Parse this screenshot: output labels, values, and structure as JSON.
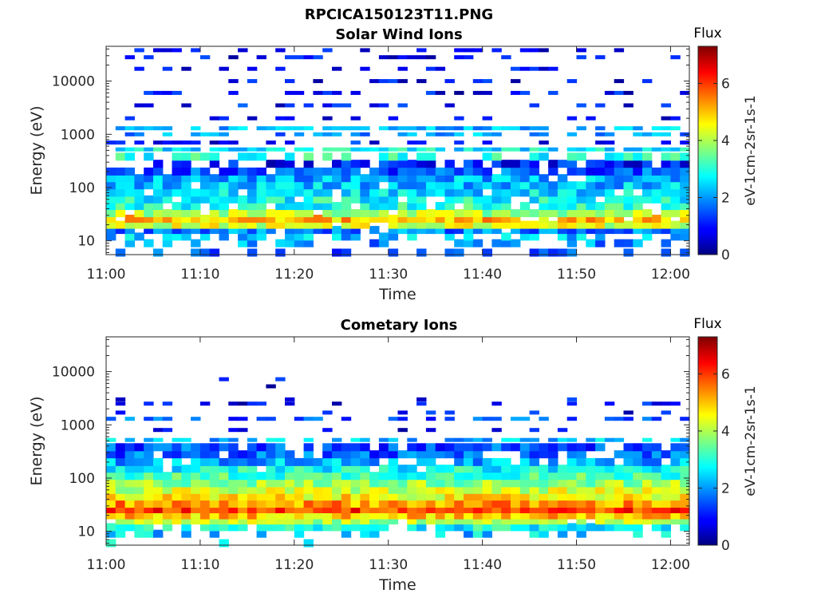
{
  "figure": {
    "title": "RPCICA150123T11.PNG"
  },
  "chart_data": [
    {
      "type": "heatmap",
      "title": "Solar Wind Ions",
      "xlabel": "Time",
      "ylabel": "Energy (eV)",
      "x_ticks": [
        "11:00",
        "11:10",
        "11:20",
        "11:30",
        "11:40",
        "11:50",
        "12:00"
      ],
      "x_range": [
        "11:00",
        "12:02"
      ],
      "y_scale": "log",
      "y_ticks": [
        "10",
        "100",
        "1000",
        "10000"
      ],
      "y_range": [
        5.5,
        45000
      ],
      "colorbar": {
        "title": "Flux",
        "label": "eV-1cm-2sr-1s-1",
        "range": [
          0,
          7.3
        ],
        "ticks": [
          "0",
          "2",
          "4",
          "6"
        ],
        "colormap": "jet"
      },
      "bands": [
        {
          "energy": 6,
          "flux": 1.5,
          "coverage": 0.35
        },
        {
          "energy": 9,
          "flux": 2.0,
          "coverage": 0.45
        },
        {
          "energy": 12,
          "flux": 2.3,
          "coverage": 0.55
        },
        {
          "energy": 16,
          "flux": 1.8,
          "coverage": 0.9
        },
        {
          "energy": 20,
          "flux": 4.3,
          "coverage": 0.95
        },
        {
          "energy": 26,
          "flux": 5.0,
          "coverage": 0.95
        },
        {
          "energy": 33,
          "flux": 4.0,
          "coverage": 0.9
        },
        {
          "energy": 45,
          "flux": 3.0,
          "coverage": 0.8
        },
        {
          "energy": 60,
          "flux": 2.8,
          "coverage": 0.85
        },
        {
          "energy": 80,
          "flux": 2.5,
          "coverage": 0.9
        },
        {
          "energy": 110,
          "flux": 2.3,
          "coverage": 0.95
        },
        {
          "energy": 150,
          "flux": 2.2,
          "coverage": 0.95
        },
        {
          "energy": 200,
          "flux": 1.5,
          "coverage": 0.85
        },
        {
          "energy": 280,
          "flux": 1.0,
          "coverage": 0.55
        },
        {
          "energy": 380,
          "flux": 3.0,
          "coverage": 0.65
        },
        {
          "energy": 520,
          "flux": 2.7,
          "coverage": 0.9
        },
        {
          "energy": 700,
          "flux": 1.0,
          "coverage": 0.5
        },
        {
          "energy": 1000,
          "flux": 2.0,
          "coverage": 0.45
        },
        {
          "energy": 1300,
          "flux": 2.2,
          "coverage": 0.7
        },
        {
          "energy": 2000,
          "flux": 1.0,
          "coverage": 0.3
        },
        {
          "energy": 3500,
          "flux": 1.0,
          "coverage": 0.3
        },
        {
          "energy": 6000,
          "flux": 0.8,
          "coverage": 0.3
        },
        {
          "energy": 10000,
          "flux": 0.8,
          "coverage": 0.28
        },
        {
          "energy": 17000,
          "flux": 0.8,
          "coverage": 0.3
        },
        {
          "energy": 28000,
          "flux": 0.8,
          "coverage": 0.35
        },
        {
          "energy": 38000,
          "flux": 0.8,
          "coverage": 0.35
        }
      ]
    },
    {
      "type": "heatmap",
      "title": "Cometary Ions",
      "xlabel": "Time",
      "ylabel": "Energy (eV)",
      "x_ticks": [
        "11:00",
        "11:10",
        "11:20",
        "11:30",
        "11:40",
        "11:50",
        "12:00"
      ],
      "x_range": [
        "11:00",
        "12:02"
      ],
      "y_scale": "log",
      "y_ticks": [
        "10",
        "100",
        "1000",
        "10000"
      ],
      "y_range": [
        5.5,
        45000
      ],
      "colorbar": {
        "title": "Flux",
        "label": "eV-1cm-2sr-1s-1",
        "range": [
          0,
          7.3
        ],
        "ticks": [
          "0",
          "2",
          "4",
          "6"
        ],
        "colormap": "jet"
      },
      "bands": [
        {
          "energy": 6,
          "flux": 2.5,
          "coverage": 0.05
        },
        {
          "energy": 9,
          "flux": 2.4,
          "coverage": 0.5
        },
        {
          "energy": 12,
          "flux": 2.8,
          "coverage": 0.75
        },
        {
          "energy": 16,
          "flux": 4.0,
          "coverage": 0.95
        },
        {
          "energy": 20,
          "flux": 5.0,
          "coverage": 1.0
        },
        {
          "energy": 26,
          "flux": 6.0,
          "coverage": 1.0
        },
        {
          "energy": 33,
          "flux": 5.3,
          "coverage": 1.0
        },
        {
          "energy": 45,
          "flux": 4.6,
          "coverage": 1.0
        },
        {
          "energy": 60,
          "flux": 4.2,
          "coverage": 1.0
        },
        {
          "energy": 80,
          "flux": 3.8,
          "coverage": 1.0
        },
        {
          "energy": 110,
          "flux": 3.2,
          "coverage": 1.0
        },
        {
          "energy": 150,
          "flux": 2.8,
          "coverage": 0.95
        },
        {
          "energy": 200,
          "flux": 2.2,
          "coverage": 0.85
        },
        {
          "energy": 280,
          "flux": 1.6,
          "coverage": 0.8
        },
        {
          "energy": 380,
          "flux": 1.5,
          "coverage": 0.75
        },
        {
          "energy": 520,
          "flux": 2.3,
          "coverage": 0.6
        },
        {
          "energy": 800,
          "flux": 0.8,
          "coverage": 0.15
        },
        {
          "energy": 1300,
          "flux": 1.5,
          "coverage": 0.55
        },
        {
          "energy": 1700,
          "flux": 1.0,
          "coverage": 0.08
        },
        {
          "energy": 2500,
          "flux": 0.8,
          "coverage": 0.3
        },
        {
          "energy": 3000,
          "flux": 0.8,
          "coverage": 0.03
        },
        {
          "energy": 5300,
          "flux": 0.8,
          "coverage": 0.03
        },
        {
          "energy": 7200,
          "flux": 0.8,
          "coverage": 0.03
        }
      ]
    }
  ]
}
